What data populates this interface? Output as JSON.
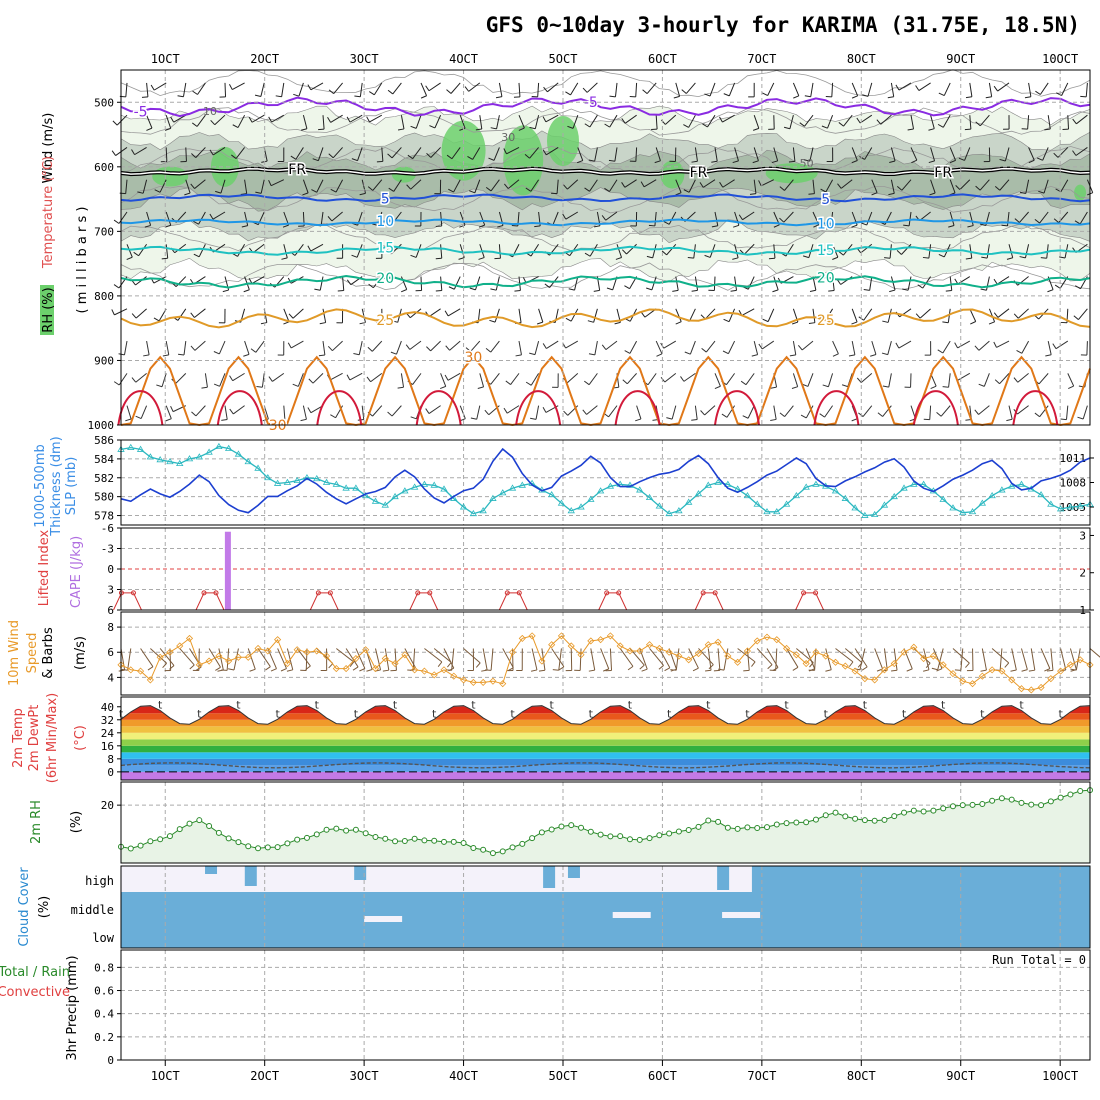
{
  "title": "GFS 0~10day 3-hourly for KARIMA (31.75E, 18.5N)",
  "chart_data": {
    "type": "meteogram",
    "x_ticks": [
      "1OCT",
      "2OCT",
      "3OCT",
      "4OCT",
      "5OCT",
      "6OCT",
      "7OCT",
      "8OCT",
      "9OCT",
      "10OCT"
    ],
    "x_range_days": [
      0.555,
      10.3
    ],
    "panels": [
      {
        "id": "upper_air",
        "labels": [
          "Wind (m/s)",
          "Temperature (°C)",
          "RH (%)",
          "( m i l l i b a r s )"
        ],
        "y_ticks": [
          "500",
          "600",
          "700",
          "800",
          "900",
          "1000"
        ],
        "ylim": [
          450,
          1000
        ],
        "temp_contours": [
          {
            "level": -5,
            "label": "-5",
            "color": "#8a2be2",
            "base_mb": 507,
            "amp": 16
          },
          {
            "level": 0,
            "label": "FR",
            "color": "#000000",
            "base_mb": 607,
            "amp": 5
          },
          {
            "level": 5,
            "label": "5",
            "color": "#2050d8",
            "base_mb": 648,
            "amp": 6
          },
          {
            "level": 10,
            "label": "10",
            "color": "#1e96e6",
            "base_mb": 686,
            "amp": 5
          },
          {
            "level": 15,
            "label": "15",
            "color": "#1fc1c1",
            "base_mb": 730,
            "amp": 7
          },
          {
            "level": 20,
            "label": "20",
            "color": "#10b08a",
            "base_mb": 778,
            "amp": 10
          },
          {
            "level": 25,
            "label": "25",
            "color": "#e09a28",
            "base_mb": 835,
            "amp": 14
          },
          {
            "level": 30,
            "label": "30",
            "color": "#e07818",
            "base_mb": 955,
            "amp": 60
          }
        ],
        "rh_contour_labels": [
          "10",
          "30",
          "50"
        ]
      },
      {
        "id": "slp_thickness",
        "labels": [
          "1000-500mb",
          "Thickness (dm)",
          "SLP (mb)"
        ],
        "y_ticks_left": [
          "586",
          "584",
          "582",
          "580",
          "578"
        ],
        "y_ticks_right": [
          "1011",
          "1008",
          "1005"
        ],
        "slp_series_mb": [
          1006,
          1005.7,
          1006.5,
          1007.2,
          1006.6,
          1006.2,
          1006.9,
          1007.8,
          1008.9,
          1008.1,
          1006.4,
          1005.3,
          1004.6,
          1004.3,
          1005.2,
          1006.3,
          1006.3,
          1007.0,
          1007.6,
          1008.5,
          1007.8,
          1006.8,
          1006.0,
          1005.4,
          1006.0,
          1006.6,
          1006.9,
          1007.4,
          1008.7,
          1009.5,
          1008.7,
          1007.2,
          1006.1,
          1005.5,
          1006.3,
          1007.0,
          1007.3,
          1008.4,
          1010.6,
          1012.1,
          1011.1,
          1009.1,
          1007.7,
          1007.0,
          1007.4,
          1008.8,
          1009.4,
          1010.1,
          1011.2,
          1010.4,
          1008.6,
          1007.5,
          1007.5,
          1008.1,
          1008.6,
          1009.0,
          1009.2,
          1009.6,
          1010.6,
          1011.3,
          1010.3,
          1008.6,
          1007.3,
          1006.8,
          1007.4,
          1008.1,
          1008.9,
          1009.4,
          1010.2,
          1011.0,
          1010.3,
          1008.5,
          1007.6,
          1007.5,
          1008.2,
          1008.7,
          1009.3,
          1009.8,
          1010.5,
          1010.9,
          1009.9,
          1008.2,
          1007.3,
          1006.9,
          1007.6,
          1008.4,
          1008.9,
          1009.5,
          1010.3,
          1010.7,
          1009.7,
          1007.9,
          1007.1,
          1007.3,
          1008.2,
          1008.5,
          1008.9,
          1009.5,
          1010.5,
          1011.0
        ],
        "thickness_series_dm": [
          585.0,
          585.2,
          585.0,
          584.2,
          583.9,
          583.7,
          583.5,
          584.0,
          584.2,
          584.7,
          585.3,
          585.1,
          584.5,
          583.7,
          583.0,
          582.0,
          581.4,
          581.5,
          581.7,
          582.0,
          581.9,
          581.5,
          581.3,
          580.9,
          580.9,
          580.1,
          579.5,
          579.1,
          580.0,
          580.6,
          581.0,
          581.3,
          581.2,
          580.8,
          579.8,
          578.9,
          578.2,
          578.5,
          579.8,
          580.4,
          580.9,
          581.2,
          581.4,
          580.7,
          580.2,
          579.3,
          578.5,
          578.9,
          579.7,
          580.6,
          581.1,
          581.3,
          581.2,
          580.7,
          579.9,
          579.0,
          578.2,
          578.5,
          579.4,
          580.3,
          581.2,
          581.5,
          581.3,
          580.8,
          580.1,
          579.2,
          578.4,
          578.4,
          579.2,
          580.1,
          581.0,
          581.3,
          581.1,
          580.6,
          579.8,
          578.8,
          578.0,
          578.1,
          579.1,
          580.0,
          580.9,
          581.3,
          581.3,
          580.6,
          579.7,
          578.8,
          578.3,
          578.4,
          579.3,
          580.1,
          580.7,
          581.1,
          581.3,
          580.8,
          580.2,
          579.2,
          578.7,
          578.9,
          579.0,
          579.2
        ]
      },
      {
        "id": "lifted_cape",
        "labels": [
          "Lifted Index",
          "CAPE (J/kg)"
        ],
        "y_ticks_left": [
          "-6",
          "-3",
          "0",
          "3",
          "6"
        ],
        "y_ticks_right": [
          "3",
          "2",
          "1"
        ],
        "cape_bar_day": 1.63,
        "cape_value": 3.1,
        "li_spikes_days": [
          0.62,
          1.45,
          2.6,
          3.6,
          4.5,
          5.5,
          6.47,
          7.48
        ]
      },
      {
        "id": "wind10m",
        "labels": [
          "10m Wind",
          "Speed",
          "& Barbs",
          "(m/s)"
        ],
        "y_ticks": [
          "8",
          "6",
          "4"
        ],
        "speed_series": [
          5.0,
          4.6,
          4.5,
          3.8,
          5.6,
          6.0,
          6.5,
          7.1,
          5.0,
          5.3,
          5.7,
          5.3,
          5.6,
          5.6,
          6.3,
          6.1,
          7.0,
          5.1,
          6.2,
          6.0,
          6.1,
          5.7,
          4.7,
          4.7,
          5.5,
          6.2,
          4.7,
          5.5,
          5.1,
          5.8,
          4.6,
          4.5,
          4.2,
          4.6,
          4.1,
          3.8,
          3.6,
          3.6,
          3.7,
          3.5,
          6.0,
          7.1,
          7.3,
          5.3,
          6.6,
          7.3,
          6.5,
          5.8,
          6.9,
          7.0,
          7.3,
          6.5,
          6.1,
          6.1,
          6.6,
          6.3,
          6.0,
          5.7,
          5.4,
          5.9,
          6.6,
          6.8,
          5.7,
          5.2,
          6.1,
          6.9,
          7.2,
          7.0,
          6.3,
          5.8,
          5.1,
          6.0,
          5.7,
          5.2,
          4.9,
          4.5,
          3.9,
          3.8,
          4.6,
          5.1,
          6.0,
          6.4,
          5.5,
          5.7,
          5.0,
          4.3,
          3.7,
          3.5,
          4.1,
          4.6,
          4.5,
          3.8,
          3.1,
          3.0,
          3.2,
          3.9,
          4.5,
          5.0,
          5.4,
          5.0
        ]
      },
      {
        "id": "temp2m",
        "labels": [
          "2m Temp",
          "2m DewPt",
          "(6hr Min/Max)",
          "(°C)"
        ],
        "y_ticks": [
          "40",
          "32",
          "24",
          "16",
          "8",
          "0"
        ],
        "tmax_c": 41,
        "tmin_c": 29,
        "dewpoint_c": 4
      },
      {
        "id": "rh2m",
        "labels": [
          "2m RH",
          "(%)"
        ],
        "y_ticks": [
          "20"
        ],
        "rh_series": [
          5.6,
          5.0,
          6.0,
          7.5,
          8.2,
          9.3,
          11.7,
          13.6,
          14.8,
          12.8,
          10.4,
          8.5,
          7.2,
          5.8,
          5.1,
          5.4,
          5.5,
          6.8,
          8.1,
          8.7,
          9.9,
          11.5,
          11.9,
          11.2,
          11.5,
          10.3,
          9.0,
          8.4,
          7.5,
          7.6,
          8.4,
          7.8,
          7.7,
          7.3,
          7.3,
          6.9,
          5.2,
          4.6,
          3.4,
          4.0,
          5.4,
          6.6,
          8.6,
          10.6,
          11.6,
          12.6,
          13.1,
          12.2,
          10.8,
          9.8,
          9.2,
          9.3,
          8.2,
          8.0,
          8.6,
          9.6,
          10.2,
          10.9,
          11.4,
          12.5,
          14.7,
          14.2,
          12.2,
          11.8,
          12.3,
          12.1,
          12.4,
          13.3,
          13.8,
          14.0,
          14.1,
          15.0,
          16.5,
          17.4,
          16.1,
          15.3,
          14.8,
          14.6,
          14.9,
          16.2,
          17.4,
          18.1,
          17.8,
          18.1,
          18.9,
          19.6,
          20.0,
          20.1,
          20.4,
          21.5,
          22.4,
          21.9,
          20.8,
          20.2,
          20.0,
          21.3,
          22.6,
          23.7,
          24.9,
          25.2
        ]
      },
      {
        "id": "cloud",
        "labels": [
          "Cloud Cover",
          "(%)"
        ],
        "levels": [
          "high",
          "middle",
          "low"
        ]
      },
      {
        "id": "precip",
        "labels": [
          "Total / Rain",
          "Convective",
          "3hr Precip (mm)"
        ],
        "y_ticks": [
          "0.8",
          "0.6",
          "0.4",
          "0.2",
          "0"
        ],
        "ylim": [
          0,
          0.95
        ],
        "run_total": "Run Total = 0"
      }
    ]
  }
}
